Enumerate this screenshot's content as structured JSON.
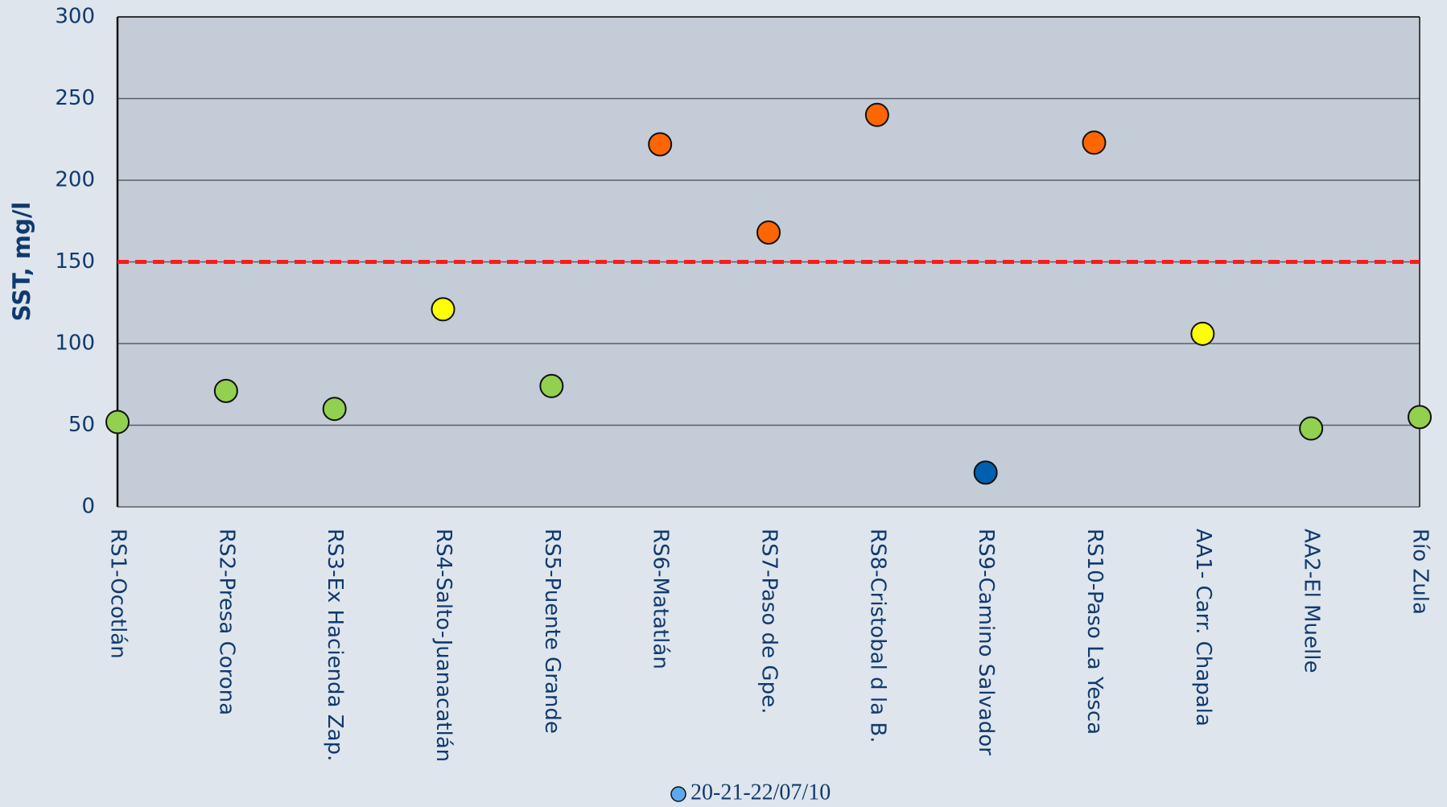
{
  "chart_data": {
    "type": "scatter",
    "y_axis_label": "SST, mg/l",
    "categories": [
      "RS1-Ocotlán",
      "RS2-Presa Corona",
      "RS3-Ex Hacienda Zap.",
      "RS4-Salto-Juanacatlán",
      "RS5-Puente Grande",
      "RS6-Matatlán",
      "RS7-Paso de Gpe.",
      "RS8-Cristobal d la B.",
      "RS9-Camino Salvador",
      "RS10-Paso La Yesca",
      "AA1- Carr. Chapala",
      "AA2-El Muelle",
      "Río Zula"
    ],
    "series": [
      {
        "name": "20-21-22/07/10",
        "color": "#5fa8f0",
        "values": [
          52,
          71,
          60,
          121,
          74,
          222,
          168,
          240,
          21,
          223,
          106,
          48,
          55
        ],
        "point_colors": [
          "#92d050",
          "#92d050",
          "#92d050",
          "#ffff00",
          "#92d050",
          "#ff6600",
          "#ff6600",
          "#ff6600",
          "#0060b0",
          "#ff6600",
          "#ffff00",
          "#92d050",
          "#92d050"
        ]
      }
    ],
    "reference_line": {
      "value": 150,
      "color": "#ff1a1a"
    },
    "ylim": [
      0,
      300
    ],
    "yticks": [
      0,
      50,
      100,
      150,
      200,
      250,
      300
    ],
    "grid": true
  }
}
